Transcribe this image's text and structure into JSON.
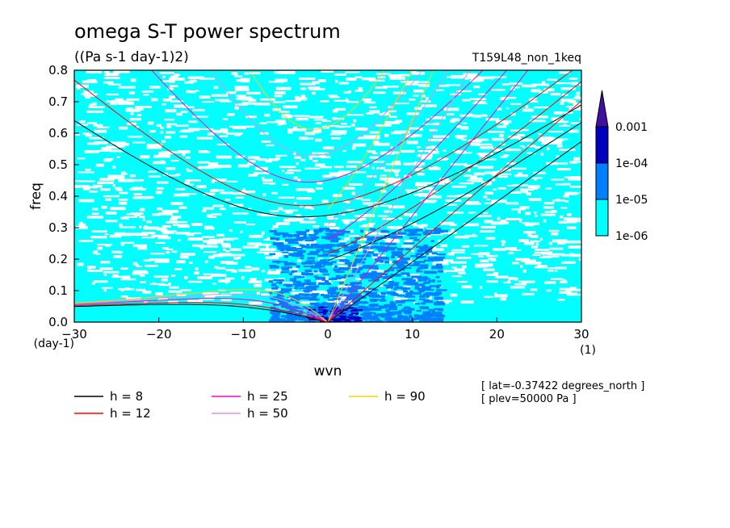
{
  "chart_data": {
    "type": "heatmap",
    "title": "omega S-T power spectrum",
    "units": "((Pa s-1 day-1)2)",
    "run_id": "T159L48_non_1keq",
    "xlabel": "wvn",
    "ylabel": "freq",
    "xunit": "(1)",
    "yunit": "(day-1)",
    "xlim": [
      -30,
      30
    ],
    "ylim": [
      0,
      0.8
    ],
    "xticks": [
      -30,
      -20,
      -10,
      0,
      10,
      20,
      30
    ],
    "yticks": [
      0.0,
      0.1,
      0.2,
      0.3,
      0.4,
      0.5,
      0.6,
      0.7,
      0.8
    ],
    "colorbar": {
      "levels": [
        "1e-06",
        "1e-05",
        "1e-04",
        "0.001"
      ],
      "colors": [
        "#00ffff",
        "#0080ff",
        "#0000c0",
        "#4010a0"
      ]
    },
    "dispersion_curves": [
      {
        "name": "h =  8",
        "h": 8,
        "color": "#000000"
      },
      {
        "name": "h = 12",
        "h": 12,
        "color": "#ff0000"
      },
      {
        "name": "h = 25",
        "h": 25,
        "color": "#ff00c0"
      },
      {
        "name": "h = 50",
        "h": 50,
        "color": "#e090e0"
      },
      {
        "name": "h = 90",
        "h": 90,
        "color": "#ffd000"
      }
    ],
    "annotations": {
      "lat": "[ lat=-0.37422 degrees_north ]",
      "plev": "[ plev=50000 Pa ]"
    }
  }
}
